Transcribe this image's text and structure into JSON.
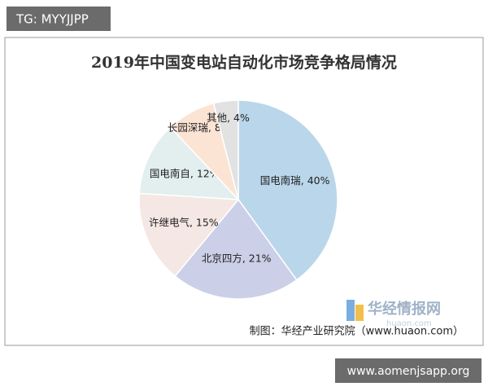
{
  "chart_data": {
    "type": "pie",
    "title": "2019年中国变电站自动化市场竞争格局情况",
    "values": [
      40,
      21,
      15,
      12,
      8,
      4
    ],
    "value_labels": [
      "国电南瑞, 40%",
      "北京四方, 21%",
      "许继电气, 15%",
      "国电南自, 12%",
      "长园深瑞, 8%",
      "其他, 4%"
    ],
    "colors": [
      "#bad6eb",
      "#cbcfe7",
      "#f5e7e3",
      "#e3efef",
      "#fce4d4",
      "#e2e2e2"
    ]
  },
  "source": "制图：华经产业研究院（www.huaon.com）",
  "logo": {
    "name": "华经情报网",
    "site": "huaon.com"
  },
  "watermarks": [
    "TG: MYYJJPP",
    "www.aomenjsapp.org"
  ]
}
